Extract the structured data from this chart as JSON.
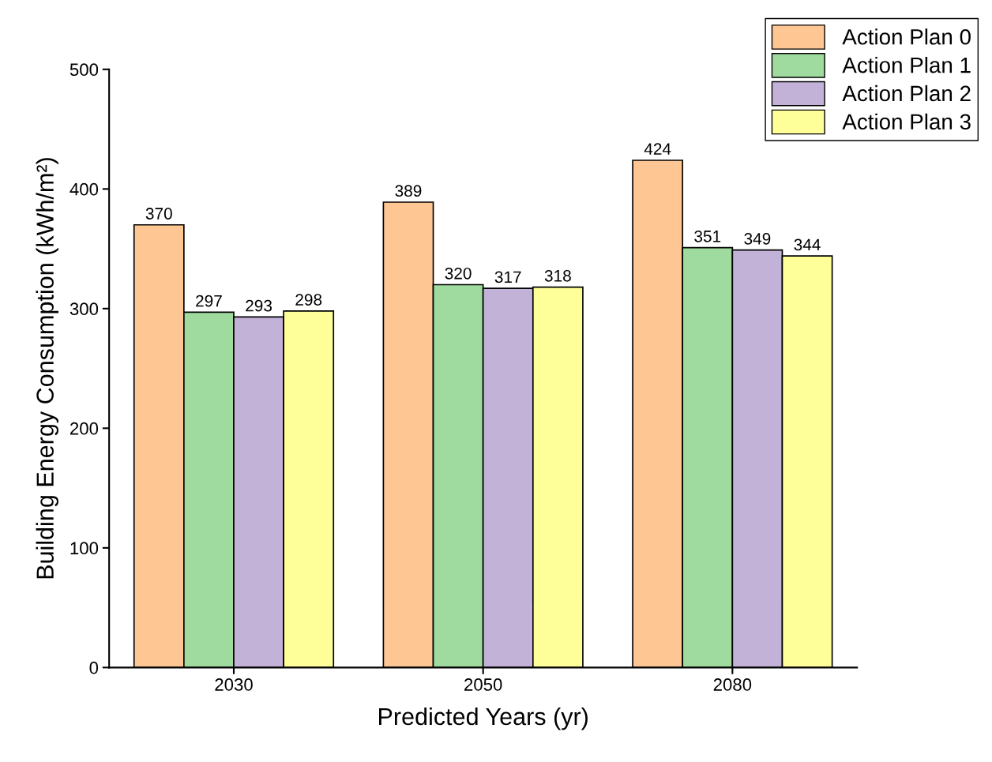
{
  "chart_data": {
    "type": "bar",
    "xlabel": "Predicted Years (yr)",
    "ylabel": "Building Energy Consumption (kWh/m²)",
    "categories": [
      "2030",
      "2050",
      "2080"
    ],
    "series": [
      {
        "name": "Action Plan 0",
        "color": "#fdc693",
        "values": [
          370,
          389,
          424
        ]
      },
      {
        "name": "Action Plan 1",
        "color": "#9fdb9f",
        "values": [
          297,
          320,
          351
        ]
      },
      {
        "name": "Action Plan 2",
        "color": "#c3b2d8",
        "values": [
          293,
          317,
          349
        ]
      },
      {
        "name": "Action Plan 3",
        "color": "#ffff99",
        "values": [
          298,
          318,
          344
        ]
      }
    ],
    "ylim": [
      0,
      500
    ],
    "yticks": [
      0,
      100,
      200,
      300,
      400,
      500
    ],
    "grid": false,
    "legend": "top right",
    "data_labels": true
  }
}
